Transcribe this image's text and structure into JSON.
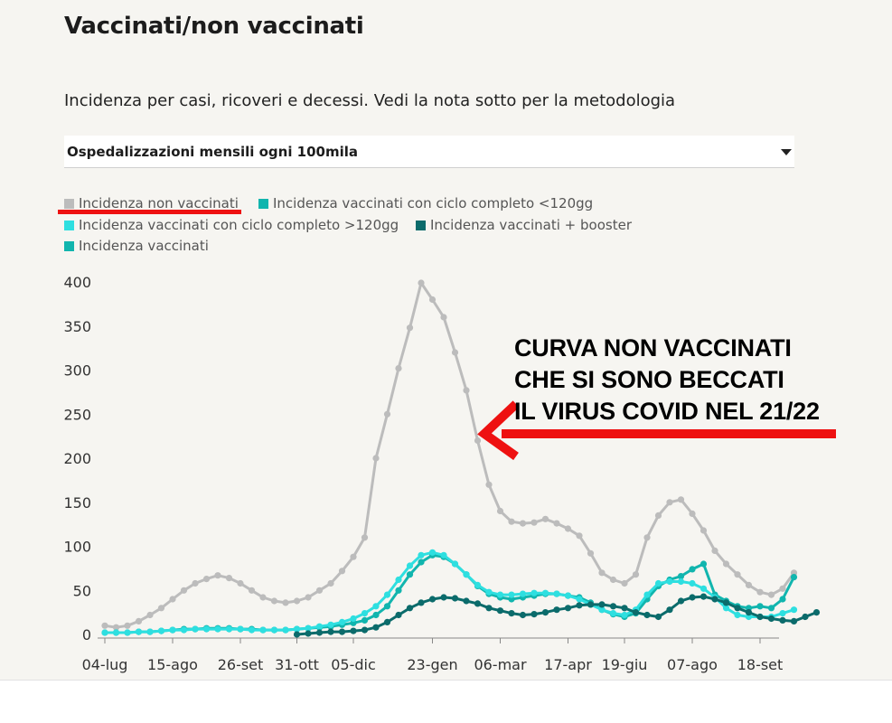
{
  "header": {
    "title": "Vaccinati/non vaccinati",
    "subtitle": "Incidenza per casi, ricoveri e decessi. Vedi la nota sotto per la metodologia"
  },
  "metric_select": {
    "selected": "Ospedalizzazioni mensili ogni 100mila",
    "icon": "caret-down-icon"
  },
  "annotation": {
    "lines": [
      "CURVA NON VACCINATI",
      "CHE SI SONO BECCATI",
      "IL VIRUS COVID NEL 21/22"
    ],
    "color": "#ee1111"
  },
  "chart_data": {
    "type": "line",
    "x_tick_labels": [
      "04-lug",
      "15-ago",
      "26-set",
      "31-ott",
      "05-dic",
      "23-gen",
      "06-mar",
      "17-apr",
      "19-giu",
      "07-ago",
      "18-set"
    ],
    "x_tick_index": [
      0,
      6,
      12,
      17,
      22,
      29,
      35,
      41,
      46,
      52,
      58
    ],
    "yticks": [
      0,
      50,
      100,
      150,
      200,
      250,
      300,
      350,
      400
    ],
    "ylim": [
      0,
      400
    ],
    "grid": false,
    "legend_position": "top",
    "series": [
      {
        "name": "Incidenza non vaccinati",
        "color": "#bcbcbc",
        "start": 0,
        "values": [
          10,
          8,
          10,
          15,
          22,
          30,
          40,
          50,
          58,
          63,
          67,
          64,
          58,
          50,
          42,
          38,
          36,
          38,
          42,
          50,
          58,
          72,
          88,
          110,
          200,
          250,
          302,
          348,
          399,
          380,
          360,
          320,
          277,
          220,
          170,
          140,
          128,
          126,
          127,
          131,
          126,
          120,
          112,
          92,
          70,
          62,
          58,
          68,
          110,
          135,
          150,
          153,
          137,
          118,
          95,
          80,
          68,
          56,
          48,
          45,
          52,
          70
        ]
      },
      {
        "name": "Incidenza vaccinati con ciclo completo <120gg",
        "color": "#11b5ae",
        "start": 0,
        "values": [
          2,
          2,
          2,
          3,
          3,
          4,
          5,
          6,
          6,
          7,
          7,
          7,
          6,
          6,
          5,
          5,
          5,
          6,
          7,
          8,
          9,
          11,
          13,
          16,
          22,
          32,
          50,
          68,
          82,
          90,
          88,
          80,
          68,
          55,
          46,
          42,
          40,
          42,
          44,
          46,
          46,
          44,
          42,
          36,
          28,
          23,
          20,
          24,
          40,
          55,
          62,
          66,
          74,
          80,
          45,
          38,
          32,
          30,
          32,
          30,
          40,
          65
        ]
      },
      {
        "name": "Incidenza vaccinati con ciclo completo >120gg",
        "color": "#2edfe0",
        "start": 0,
        "values": [
          2,
          2,
          2,
          3,
          3,
          4,
          5,
          5,
          6,
          6,
          6,
          6,
          6,
          5,
          5,
          5,
          5,
          6,
          7,
          9,
          11,
          14,
          18,
          24,
          32,
          45,
          62,
          78,
          90,
          93,
          90,
          80,
          68,
          56,
          48,
          45,
          45,
          46,
          47,
          47,
          46,
          44,
          40,
          34,
          28,
          24,
          22,
          28,
          45,
          58,
          60,
          60,
          58,
          52,
          42,
          30,
          22,
          20,
          20,
          20,
          24,
          28
        ]
      },
      {
        "name": "Incidenza vaccinati + booster",
        "color": "#0b6b6b",
        "start": 17,
        "values": [
          0,
          1,
          2,
          3,
          3,
          4,
          5,
          8,
          14,
          22,
          30,
          36,
          40,
          42,
          41,
          38,
          35,
          30,
          27,
          24,
          22,
          23,
          25,
          28,
          30,
          33,
          34,
          34,
          32,
          30,
          25,
          22,
          20,
          28,
          38,
          42,
          43,
          40,
          36,
          30,
          25,
          20,
          18,
          16,
          15,
          20,
          25
        ]
      }
    ]
  }
}
